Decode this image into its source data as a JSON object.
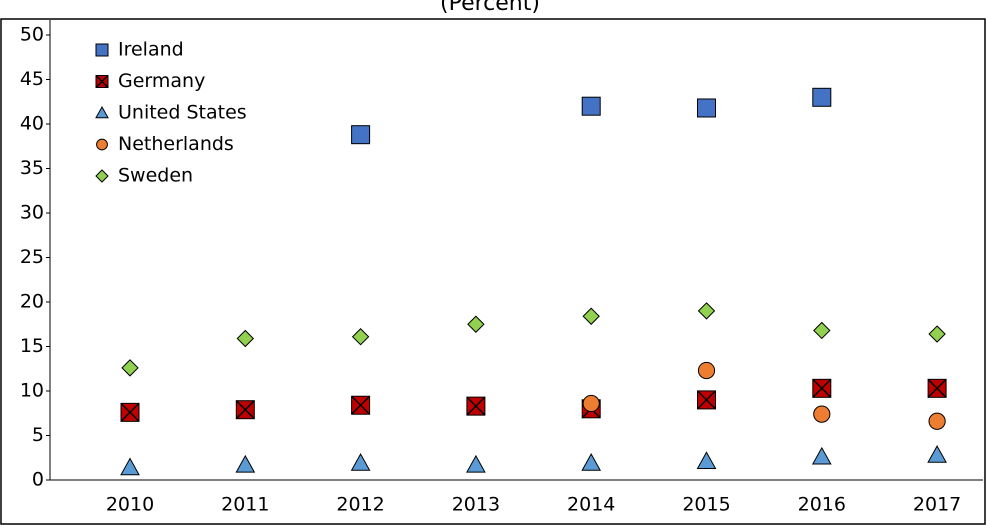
{
  "chart_data": {
    "type": "scatter",
    "title": "(Percent)",
    "categories": [
      "2010",
      "2011",
      "2012",
      "2013",
      "2014",
      "2015",
      "2016",
      "2017"
    ],
    "series": [
      {
        "name": "Ireland",
        "color": "#4472c4",
        "marker": "square",
        "values": [
          null,
          null,
          38.8,
          null,
          42,
          41.8,
          43,
          null
        ]
      },
      {
        "name": "Germany",
        "color": "#c00000",
        "marker": "xsquare",
        "values": [
          7.6,
          7.9,
          8.4,
          8.3,
          8.0,
          9.0,
          10.3,
          10.3
        ]
      },
      {
        "name": "United States",
        "color": "#5b9bd5",
        "marker": "triangle",
        "values": [
          1.4,
          1.7,
          1.9,
          1.7,
          1.9,
          2.1,
          2.6,
          2.8
        ]
      },
      {
        "name": "Netherlands",
        "color": "#ed7d31",
        "marker": "circle",
        "values": [
          null,
          null,
          null,
          null,
          8.6,
          12.3,
          7.4,
          6.6
        ]
      },
      {
        "name": "Sweden",
        "color": "#92d050",
        "marker": "diamond",
        "values": [
          12.6,
          15.9,
          16.1,
          17.5,
          18.4,
          19.0,
          16.8,
          16.4
        ]
      }
    ],
    "ylim": [
      0,
      50
    ],
    "yticks": [
      0,
      5,
      10,
      15,
      20,
      25,
      30,
      35,
      40,
      45,
      50
    ],
    "grid": false,
    "legend": "top-left"
  }
}
